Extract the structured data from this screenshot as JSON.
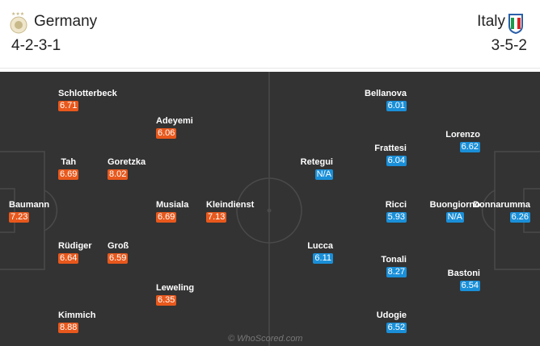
{
  "home": {
    "name": "Germany",
    "formation": "4-2-3-1",
    "color": "#e8581c",
    "players": [
      {
        "name": "Schlotterbeck",
        "rating": "6.71"
      },
      {
        "name": "Adeyemi",
        "rating": "6.06"
      },
      {
        "name": "Tah",
        "rating": "6.69"
      },
      {
        "name": "Goretzka",
        "rating": "8.02"
      },
      {
        "name": "Baumann",
        "rating": "7.23"
      },
      {
        "name": "Musiala",
        "rating": "6.69"
      },
      {
        "name": "Kleindienst",
        "rating": "7.13"
      },
      {
        "name": "Rüdiger",
        "rating": "6.64"
      },
      {
        "name": "Groß",
        "rating": "6.59"
      },
      {
        "name": "Leweling",
        "rating": "6.35"
      },
      {
        "name": "Kimmich",
        "rating": "8.88"
      }
    ]
  },
  "away": {
    "name": "Italy",
    "formation": "3-5-2",
    "color": "#1a8fd8",
    "players": [
      {
        "name": "Bellanova",
        "rating": "6.01"
      },
      {
        "name": "Lorenzo",
        "rating": "6.62"
      },
      {
        "name": "Retegui",
        "rating": "N/A"
      },
      {
        "name": "Frattesi",
        "rating": "6.04"
      },
      {
        "name": "Ricci",
        "rating": "5.93"
      },
      {
        "name": "Buongiorno",
        "rating": "N/A"
      },
      {
        "name": "Donnarumma",
        "rating": "6.26"
      },
      {
        "name": "Lucca",
        "rating": "6.11"
      },
      {
        "name": "Tonali",
        "rating": "8.27"
      },
      {
        "name": "Bastoni",
        "rating": "6.54"
      },
      {
        "name": "Udogie",
        "rating": "6.52"
      }
    ]
  },
  "footer": "© WhoScored.com"
}
